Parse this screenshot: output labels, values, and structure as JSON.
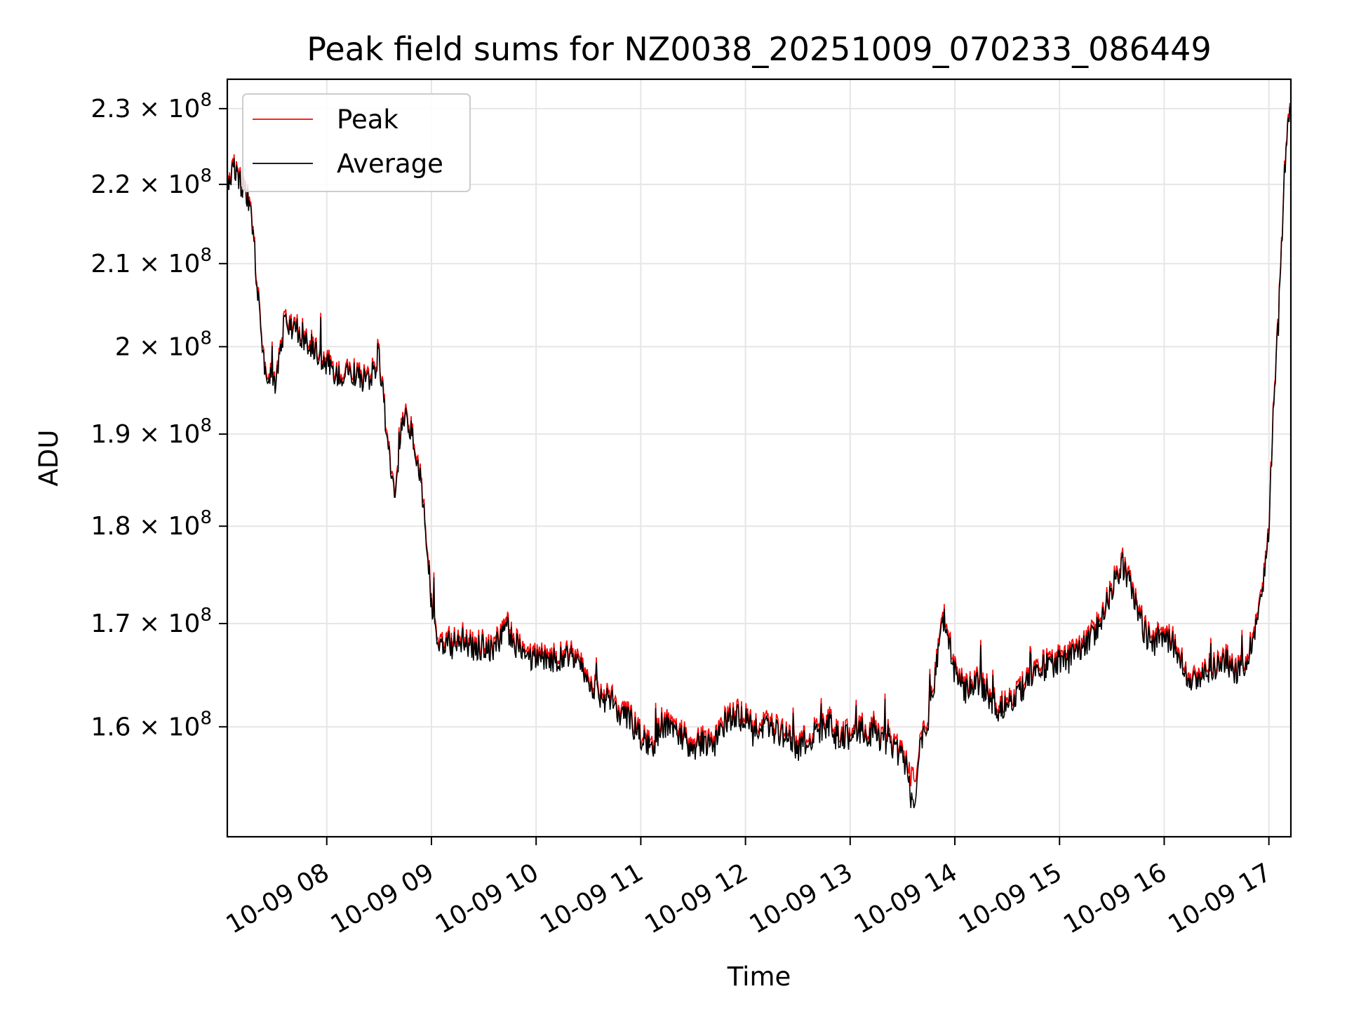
{
  "chart_data": {
    "type": "line",
    "title": "Peak field sums for NZ0038_20251009_070233_086449",
    "xlabel": "Time",
    "ylabel": "ADU",
    "yscale": "log",
    "xlim": [
      7.05,
      17.21
    ],
    "ylim": [
      150000000,
      234000000
    ],
    "grid": true,
    "legend_position": "top-left",
    "x_ticks": [
      {
        "value": 8,
        "label": "10-09 08"
      },
      {
        "value": 9,
        "label": "10-09 09"
      },
      {
        "value": 10,
        "label": "10-09 10"
      },
      {
        "value": 11,
        "label": "10-09 11"
      },
      {
        "value": 12,
        "label": "10-09 12"
      },
      {
        "value": 13,
        "label": "10-09 13"
      },
      {
        "value": 14,
        "label": "10-09 14"
      },
      {
        "value": 15,
        "label": "10-09 15"
      },
      {
        "value": 16,
        "label": "10-09 16"
      },
      {
        "value": 17,
        "label": "10-09 17"
      }
    ],
    "y_ticks": [
      {
        "value": 160000000,
        "mantissa": "1.6",
        "exponent": "8"
      },
      {
        "value": 170000000,
        "mantissa": "1.7",
        "exponent": "8"
      },
      {
        "value": 180000000,
        "mantissa": "1.8",
        "exponent": "8"
      },
      {
        "value": 190000000,
        "mantissa": "1.9",
        "exponent": "8"
      },
      {
        "value": 200000000,
        "mantissa": "2",
        "exponent": "8"
      },
      {
        "value": 210000000,
        "mantissa": "2.1",
        "exponent": "8"
      },
      {
        "value": 220000000,
        "mantissa": "2.2",
        "exponent": "8"
      },
      {
        "value": 230000000,
        "mantissa": "2.3",
        "exponent": "8"
      }
    ],
    "x_hours_keypoints": [
      7.05,
      7.1,
      7.15,
      7.2,
      7.25,
      7.3,
      7.35,
      7.4,
      7.5,
      7.6,
      7.7,
      7.8,
      7.9,
      8.0,
      8.1,
      8.2,
      8.3,
      8.4,
      8.5,
      8.6,
      8.65,
      8.7,
      8.75,
      8.8,
      8.85,
      8.9,
      8.95,
      9.0,
      9.05,
      9.1,
      9.2,
      9.3,
      9.4,
      9.5,
      9.6,
      9.7,
      9.8,
      9.9,
      10.0,
      10.1,
      10.2,
      10.3,
      10.4,
      10.5,
      10.6,
      10.7,
      10.8,
      10.9,
      11.0,
      11.1,
      11.2,
      11.3,
      11.4,
      11.5,
      11.6,
      11.7,
      11.8,
      11.9,
      12.0,
      12.1,
      12.2,
      12.3,
      12.4,
      12.5,
      12.6,
      12.7,
      12.8,
      12.9,
      13.0,
      13.1,
      13.2,
      13.3,
      13.4,
      13.5,
      13.55,
      13.6,
      13.65,
      13.7,
      13.75,
      13.8,
      13.85,
      13.9,
      14.0,
      14.1,
      14.2,
      14.3,
      14.4,
      14.5,
      14.6,
      14.7,
      14.8,
      14.9,
      15.0,
      15.1,
      15.2,
      15.3,
      15.4,
      15.5,
      15.6,
      15.7,
      15.8,
      15.9,
      16.0,
      16.1,
      16.2,
      16.3,
      16.4,
      16.5,
      16.6,
      16.7,
      16.8,
      16.85,
      16.9,
      16.95,
      17.0,
      17.05,
      17.1,
      17.15,
      17.2
    ],
    "series": [
      {
        "name": "Peak",
        "color": "#ff0000",
        "values": [
          220500000,
          222500000,
          221500000,
          220000000,
          218500000,
          214000000,
          205500000,
          198000000,
          196000000,
          203500000,
          202500000,
          201500000,
          200000000,
          198500000,
          197000000,
          198000000,
          197000000,
          196500000,
          199000000,
          187500000,
          184500000,
          189500000,
          193000000,
          191000000,
          188000000,
          185500000,
          179000000,
          172500000,
          169500000,
          168000000,
          168200000,
          168800000,
          167800000,
          168300000,
          168000000,
          170500000,
          168400000,
          167500000,
          166800000,
          167200000,
          166800000,
          167500000,
          166200000,
          165000000,
          163500000,
          162800000,
          161800000,
          161000000,
          159500000,
          158200000,
          160800000,
          160200000,
          159500000,
          158500000,
          159200000,
          158500000,
          160800000,
          161500000,
          161200000,
          160700000,
          160300000,
          160000000,
          159200000,
          158500000,
          159300000,
          160200000,
          160700000,
          159600000,
          159600000,
          160200000,
          159700000,
          159100000,
          158600000,
          157800000,
          156500000,
          155000000,
          157200000,
          159700000,
          161500000,
          164500000,
          169000000,
          171000000,
          165500000,
          163800000,
          164600000,
          163900000,
          162200000,
          162800000,
          163600000,
          164600000,
          165800000,
          166400000,
          166700000,
          166900000,
          167700000,
          168900000,
          171000000,
          174000000,
          176500000,
          173500000,
          170000000,
          168500000,
          169200000,
          168300000,
          165800000,
          164500000,
          165800000,
          166300000,
          166700000,
          165600000,
          166900000,
          169500000,
          171500000,
          174500000,
          180500000,
          195500000,
          205000000,
          222000000,
          232000000
        ]
      },
      {
        "name": "Average",
        "color": "#000000",
        "values": [
          220000000,
          222000000,
          221000000,
          219500000,
          218000000,
          213500000,
          205000000,
          197500000,
          195500000,
          203000000,
          202000000,
          201000000,
          199500000,
          198000000,
          196500000,
          197500000,
          196500000,
          196000000,
          198500000,
          187000000,
          184000000,
          189000000,
          192500000,
          190500000,
          187500000,
          185000000,
          178500000,
          172000000,
          169000000,
          167500000,
          167700000,
          168300000,
          167300000,
          167800000,
          167500000,
          170000000,
          167900000,
          167000000,
          166300000,
          166700000,
          166300000,
          167000000,
          165700000,
          164500000,
          163000000,
          162300000,
          161300000,
          160500000,
          159000000,
          157700000,
          160300000,
          159700000,
          159000000,
          158000000,
          158700000,
          158000000,
          160300000,
          161000000,
          160700000,
          160200000,
          159800000,
          159500000,
          158700000,
          158000000,
          158800000,
          159700000,
          160200000,
          159100000,
          159100000,
          159700000,
          159200000,
          158600000,
          158100000,
          157300000,
          156000000,
          152000000,
          156700000,
          159200000,
          161000000,
          164000000,
          168500000,
          170500000,
          165000000,
          163300000,
          164100000,
          163400000,
          161700000,
          162300000,
          163100000,
          164100000,
          165300000,
          165900000,
          166200000,
          166400000,
          167200000,
          168400000,
          170500000,
          173500000,
          176000000,
          173000000,
          169500000,
          168000000,
          168700000,
          167800000,
          165300000,
          164000000,
          165300000,
          165800000,
          166200000,
          165100000,
          166400000,
          169000000,
          171000000,
          174000000,
          180000000,
          195000000,
          204500000,
          221500000,
          231500000
        ]
      }
    ]
  }
}
